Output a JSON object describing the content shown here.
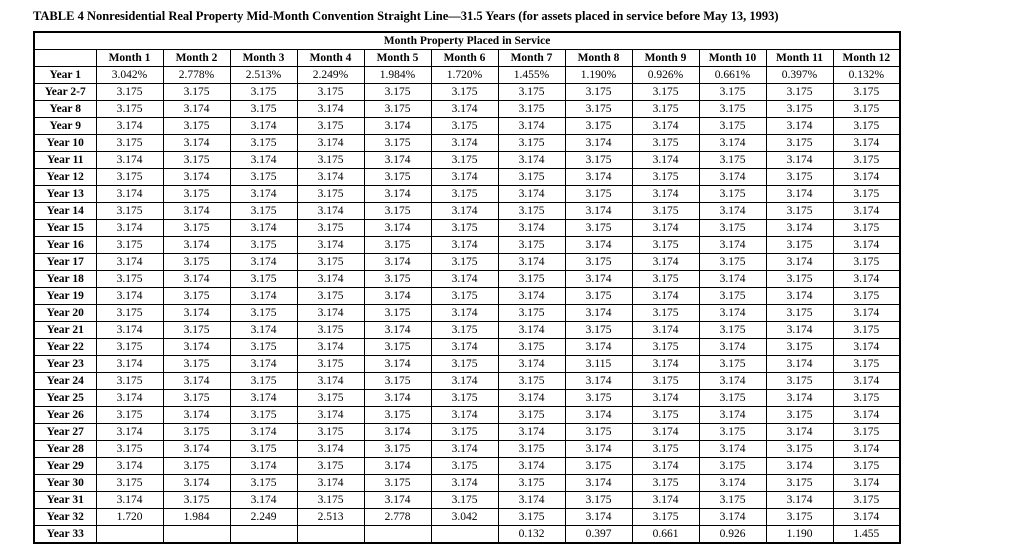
{
  "title": "TABLE 4 Nonresidential Real Property Mid-Month Convention Straight Line—31.5 Years (for assets placed in service before May 13, 1993)",
  "colors": {
    "background": "#ffffff",
    "text": "#000000",
    "border": "#000000"
  },
  "table": {
    "spanning_header": "Month Property Placed in Service",
    "column_headers": [
      "",
      "Month 1",
      "Month 2",
      "Month 3",
      "Month 4",
      "Month 5",
      "Month 6",
      "Month 7",
      "Month 8",
      "Month 9",
      "Month 10",
      "Month 11",
      "Month 12"
    ],
    "rows": [
      {
        "label": "Year 1",
        "values": [
          "3.042%",
          "2.778%",
          "2.513%",
          "2.249%",
          "1.984%",
          "1.720%",
          "1.455%",
          "1.190%",
          "0.926%",
          "0.661%",
          "0.397%",
          "0.132%"
        ]
      },
      {
        "label": "Year 2-7",
        "values": [
          "3.175",
          "3.175",
          "3.175",
          "3.175",
          "3.175",
          "3.175",
          "3.175",
          "3.175",
          "3.175",
          "3.175",
          "3.175",
          "3.175"
        ]
      },
      {
        "label": "Year 8",
        "values": [
          "3.175",
          "3.174",
          "3.175",
          "3.174",
          "3.175",
          "3.174",
          "3.175",
          "3.175",
          "3.175",
          "3.175",
          "3.175",
          "3.175"
        ]
      },
      {
        "label": "Year 9",
        "values": [
          "3.174",
          "3.175",
          "3.174",
          "3.175",
          "3.174",
          "3.175",
          "3.174",
          "3.175",
          "3.174",
          "3.175",
          "3.174",
          "3.175"
        ]
      },
      {
        "label": "Year 10",
        "values": [
          "3.175",
          "3.174",
          "3.175",
          "3.174",
          "3.175",
          "3.174",
          "3.175",
          "3.174",
          "3.175",
          "3.174",
          "3.175",
          "3.174"
        ]
      },
      {
        "label": "Year 11",
        "values": [
          "3.174",
          "3.175",
          "3.174",
          "3.175",
          "3.174",
          "3.175",
          "3.174",
          "3.175",
          "3.174",
          "3.175",
          "3.174",
          "3.175"
        ]
      },
      {
        "label": "Year 12",
        "values": [
          "3.175",
          "3.174",
          "3.175",
          "3.174",
          "3.175",
          "3.174",
          "3.175",
          "3.174",
          "3.175",
          "3.174",
          "3.175",
          "3.174"
        ]
      },
      {
        "label": "Year 13",
        "values": [
          "3.174",
          "3.175",
          "3.174",
          "3.175",
          "3.174",
          "3.175",
          "3.174",
          "3.175",
          "3.174",
          "3.175",
          "3.174",
          "3.175"
        ]
      },
      {
        "label": "Year 14",
        "values": [
          "3.175",
          "3.174",
          "3.175",
          "3.174",
          "3.175",
          "3.174",
          "3.175",
          "3.174",
          "3.175",
          "3.174",
          "3.175",
          "3.174"
        ]
      },
      {
        "label": "Year 15",
        "values": [
          "3.174",
          "3.175",
          "3.174",
          "3.175",
          "3.174",
          "3.175",
          "3.174",
          "3.175",
          "3.174",
          "3.175",
          "3.174",
          "3.175"
        ]
      },
      {
        "label": "Year 16",
        "values": [
          "3.175",
          "3.174",
          "3.175",
          "3.174",
          "3.175",
          "3.174",
          "3.175",
          "3.174",
          "3.175",
          "3.174",
          "3.175",
          "3.174"
        ]
      },
      {
        "label": "Year 17",
        "values": [
          "3.174",
          "3.175",
          "3.174",
          "3.175",
          "3.174",
          "3.175",
          "3.174",
          "3.175",
          "3.174",
          "3.175",
          "3.174",
          "3.175"
        ]
      },
      {
        "label": "Year 18",
        "values": [
          "3.175",
          "3.174",
          "3.175",
          "3.174",
          "3.175",
          "3.174",
          "3.175",
          "3.174",
          "3.175",
          "3.174",
          "3.175",
          "3.174"
        ]
      },
      {
        "label": "Year 19",
        "values": [
          "3.174",
          "3.175",
          "3.174",
          "3.175",
          "3.174",
          "3.175",
          "3.174",
          "3.175",
          "3.174",
          "3.175",
          "3.174",
          "3.175"
        ]
      },
      {
        "label": "Year 20",
        "values": [
          "3.175",
          "3.174",
          "3.175",
          "3.174",
          "3.175",
          "3.174",
          "3.175",
          "3.174",
          "3.175",
          "3.174",
          "3.175",
          "3.174"
        ]
      },
      {
        "label": "Year 21",
        "values": [
          "3.174",
          "3.175",
          "3.174",
          "3.175",
          "3.174",
          "3.175",
          "3.174",
          "3.175",
          "3.174",
          "3.175",
          "3.174",
          "3.175"
        ]
      },
      {
        "label": "Year 22",
        "values": [
          "3.175",
          "3.174",
          "3.175",
          "3.174",
          "3.175",
          "3.174",
          "3.175",
          "3.174",
          "3.175",
          "3.174",
          "3.175",
          "3.174"
        ]
      },
      {
        "label": "Year 23",
        "values": [
          "3.174",
          "3.175",
          "3.174",
          "3.175",
          "3.174",
          "3.175",
          "3.174",
          "3.115",
          "3.174",
          "3.175",
          "3.174",
          "3.175"
        ]
      },
      {
        "label": "Year 24",
        "values": [
          "3.175",
          "3.174",
          "3.175",
          "3.174",
          "3.175",
          "3.174",
          "3.175",
          "3.174",
          "3.175",
          "3.174",
          "3.175",
          "3.174"
        ]
      },
      {
        "label": "Year 25",
        "values": [
          "3.174",
          "3.175",
          "3.174",
          "3.175",
          "3.174",
          "3.175",
          "3.174",
          "3.175",
          "3.174",
          "3.175",
          "3.174",
          "3.175"
        ]
      },
      {
        "label": "Year 26",
        "values": [
          "3.175",
          "3.174",
          "3.175",
          "3.174",
          "3.175",
          "3.174",
          "3.175",
          "3.174",
          "3.175",
          "3.174",
          "3.175",
          "3.174"
        ]
      },
      {
        "label": "Year 27",
        "values": [
          "3.174",
          "3.175",
          "3.174",
          "3.175",
          "3.174",
          "3.175",
          "3.174",
          "3.175",
          "3.174",
          "3.175",
          "3.174",
          "3.175"
        ]
      },
      {
        "label": "Year 28",
        "values": [
          "3.175",
          "3.174",
          "3.175",
          "3.174",
          "3.175",
          "3.174",
          "3.175",
          "3.174",
          "3.175",
          "3.174",
          "3.175",
          "3.174"
        ]
      },
      {
        "label": "Year 29",
        "values": [
          "3.174",
          "3.175",
          "3.174",
          "3.175",
          "3.174",
          "3.175",
          "3.174",
          "3.175",
          "3.174",
          "3.175",
          "3.174",
          "3.175"
        ]
      },
      {
        "label": "Year 30",
        "values": [
          "3.175",
          "3.174",
          "3.175",
          "3.174",
          "3.175",
          "3.174",
          "3.175",
          "3.174",
          "3.175",
          "3.174",
          "3.175",
          "3.174"
        ]
      },
      {
        "label": "Year 31",
        "values": [
          "3.174",
          "3.175",
          "3.174",
          "3.175",
          "3.174",
          "3.175",
          "3.174",
          "3.175",
          "3.174",
          "3.175",
          "3.174",
          "3.175"
        ]
      },
      {
        "label": "Year 32",
        "values": [
          "1.720",
          "1.984",
          "2.249",
          "2.513",
          "2.778",
          "3.042",
          "3.175",
          "3.174",
          "3.175",
          "3.174",
          "3.175",
          "3.174"
        ]
      },
      {
        "label": "Year 33",
        "values": [
          "",
          "",
          "",
          "",
          "",
          "",
          "0.132",
          "0.397",
          "0.661",
          "0.926",
          "1.190",
          "1.455"
        ]
      }
    ]
  }
}
